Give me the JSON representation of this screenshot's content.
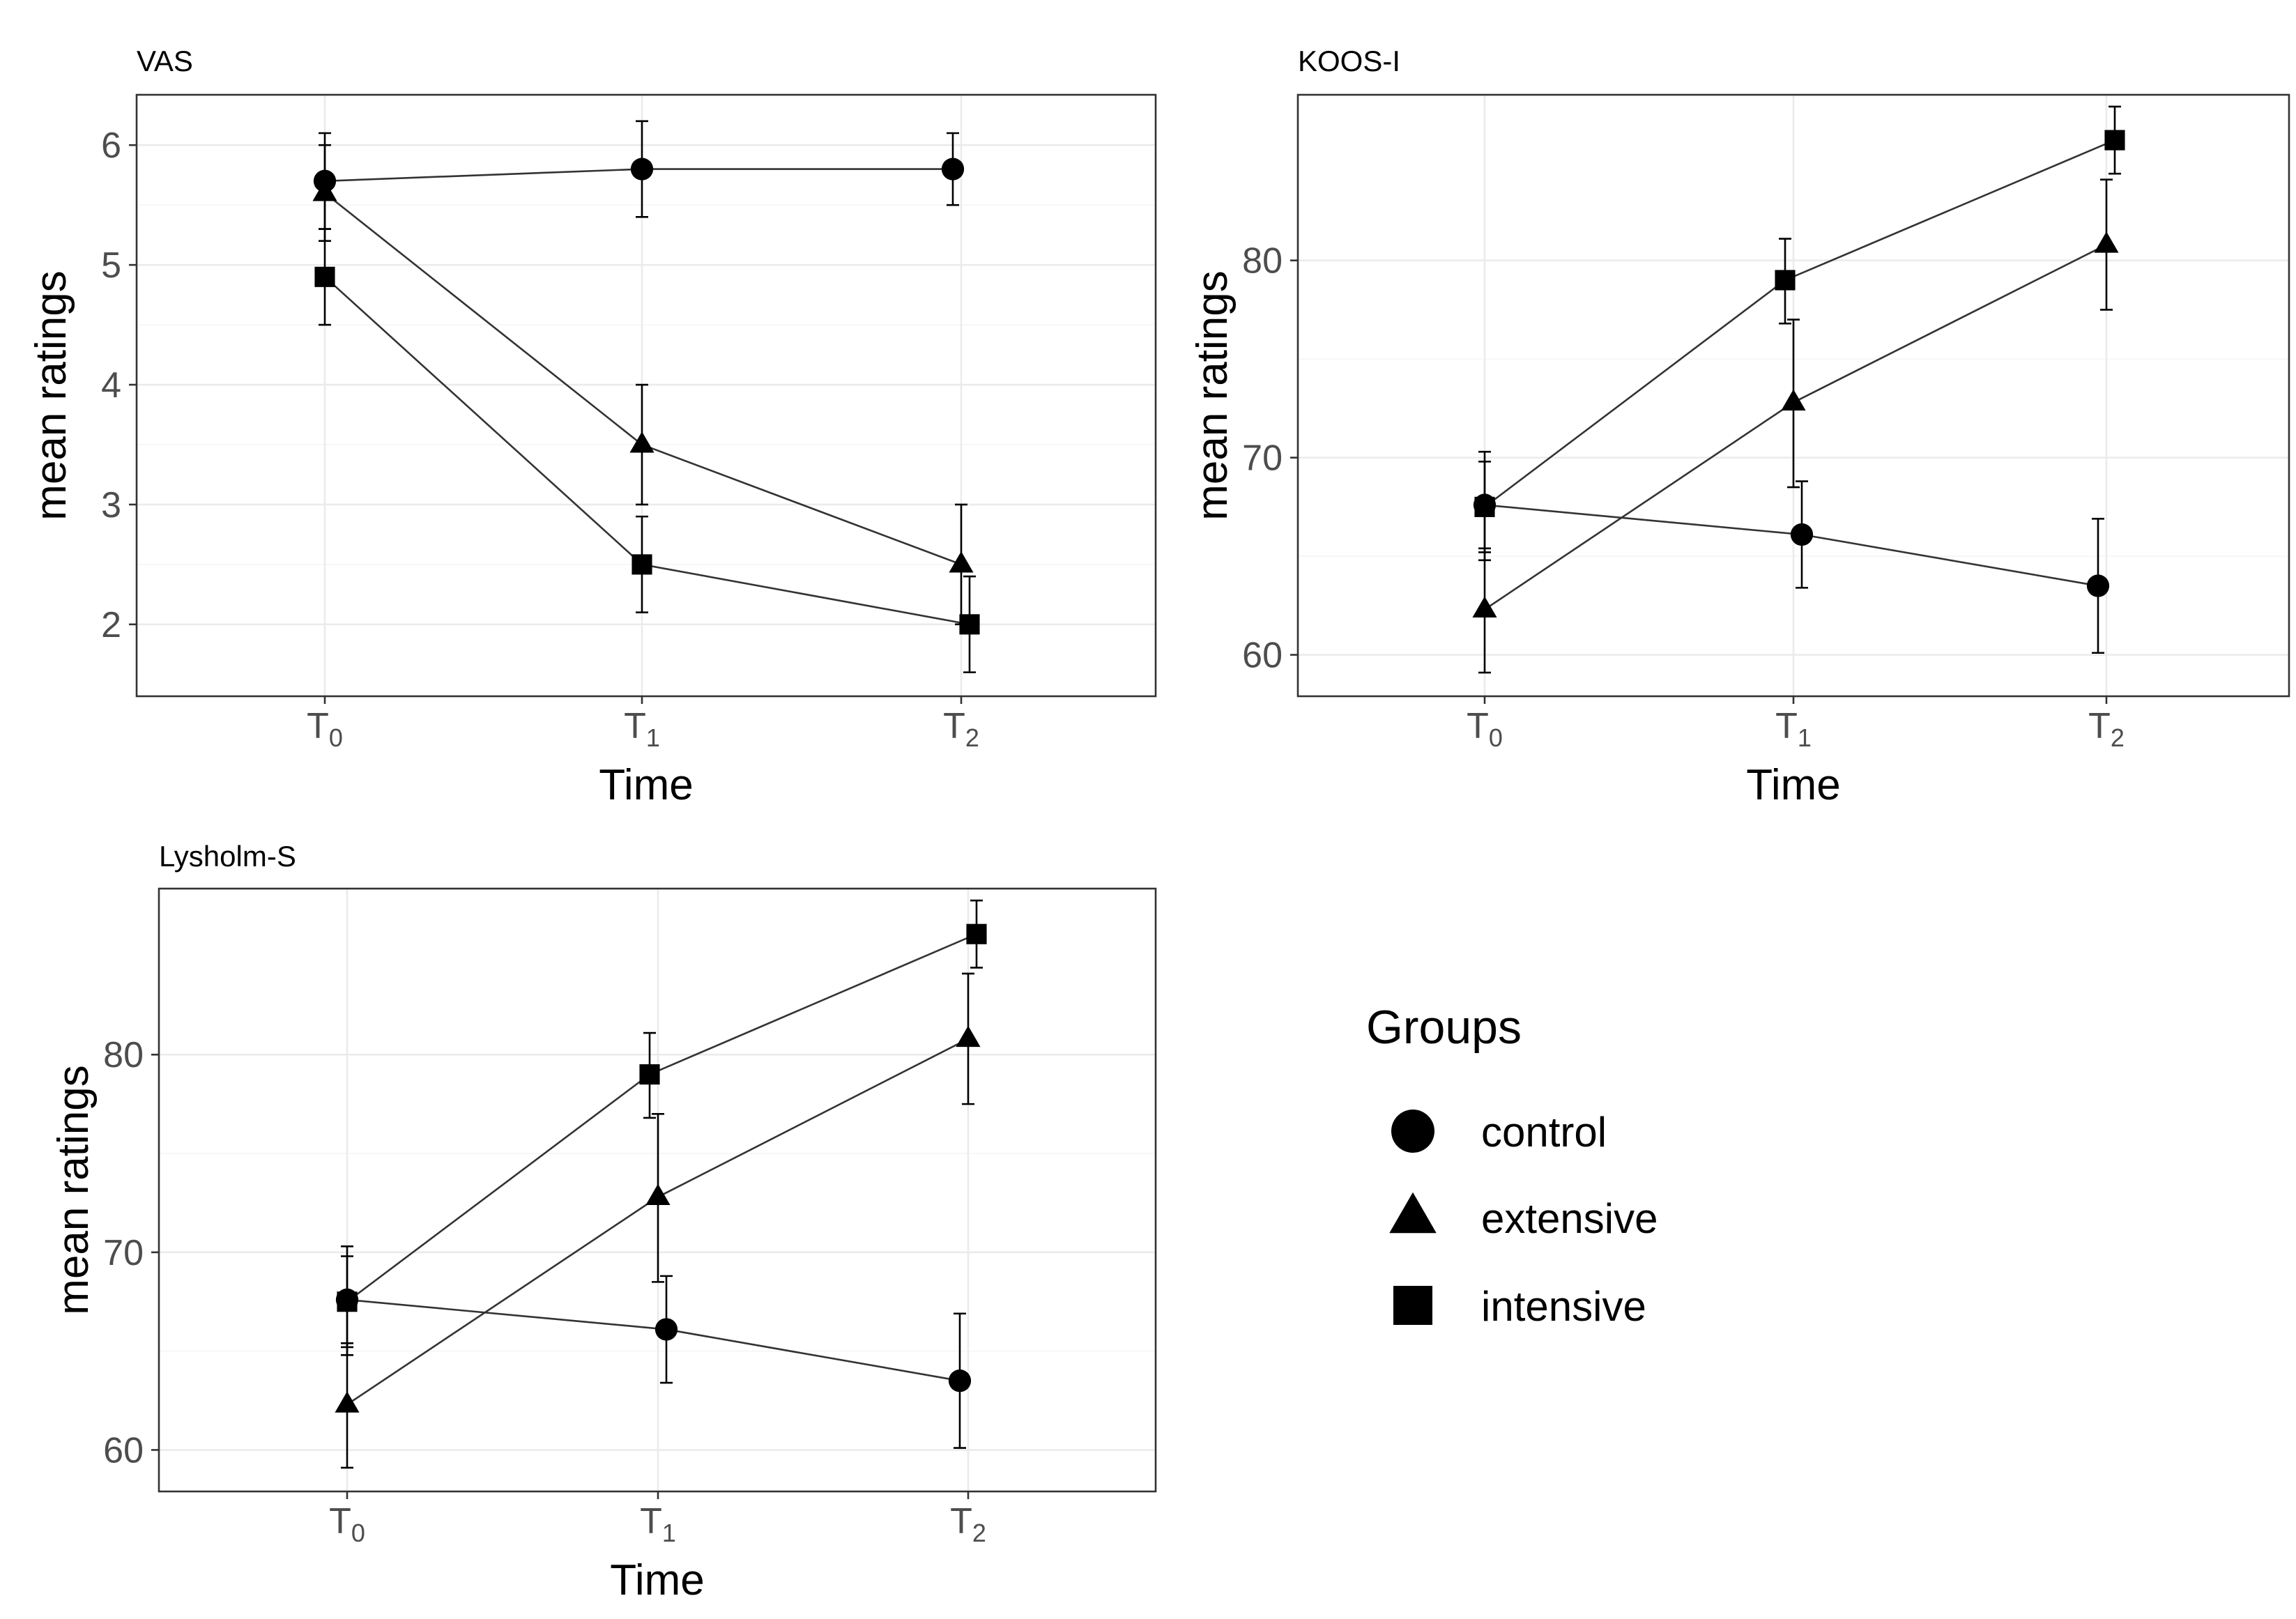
{
  "chart_data": [
    {
      "id": "vas",
      "type": "line",
      "title": "VAS",
      "xlabel": "Time",
      "ylabel": "mean ratings",
      "categories": [
        {
          "base": "T",
          "sub": "0"
        },
        {
          "base": "T",
          "sub": "1"
        },
        {
          "base": "T",
          "sub": "2"
        }
      ],
      "ylim": [
        1.4,
        6.42
      ],
      "yticks": [
        2,
        3,
        4,
        5,
        6
      ],
      "grid": true,
      "series": [
        {
          "name": "control",
          "shape": "circle",
          "values": [
            5.7,
            5.8,
            5.8
          ],
          "lower": [
            5.3,
            5.4,
            5.5
          ],
          "upper": [
            6.1,
            6.2,
            6.1
          ]
        },
        {
          "name": "extensive",
          "shape": "triangle",
          "values": [
            5.6,
            3.5,
            2.5
          ],
          "lower": [
            5.2,
            3.0,
            2.0
          ],
          "upper": [
            6.0,
            4.0,
            3.0
          ]
        },
        {
          "name": "intensive",
          "shape": "square",
          "values": [
            4.9,
            2.5,
            2.0
          ],
          "lower": [
            4.5,
            2.1,
            1.6
          ],
          "upper": [
            5.3,
            2.9,
            2.4
          ]
        }
      ]
    },
    {
      "id": "koos",
      "type": "line",
      "title": "KOOS-I",
      "xlabel": "Time",
      "ylabel": "mean ratings",
      "categories": [
        {
          "base": "T",
          "sub": "0"
        },
        {
          "base": "T",
          "sub": "1"
        },
        {
          "base": "T",
          "sub": "2"
        }
      ],
      "ylim": [
        57.9,
        88.4
      ],
      "yticks": [
        60,
        70,
        80
      ],
      "grid": true,
      "series": [
        {
          "name": "control",
          "shape": "circle",
          "values": [
            67.6,
            66.1,
            63.5
          ],
          "lower": [
            64.8,
            63.4,
            60.1
          ],
          "upper": [
            70.3,
            68.8,
            66.9
          ]
        },
        {
          "name": "extensive",
          "shape": "triangle",
          "values": [
            62.3,
            72.8,
            80.8
          ],
          "lower": [
            59.1,
            68.5,
            77.5
          ],
          "upper": [
            65.4,
            77.0,
            84.1
          ]
        },
        {
          "name": "intensive",
          "shape": "square",
          "values": [
            67.5,
            79.0,
            86.1
          ],
          "lower": [
            65.2,
            76.8,
            84.4
          ],
          "upper": [
            69.8,
            81.1,
            87.8
          ]
        }
      ]
    },
    {
      "id": "lysholm",
      "type": "line",
      "title": "Lysholm-S",
      "xlabel": "Time",
      "ylabel": "mean ratings",
      "categories": [
        {
          "base": "T",
          "sub": "0"
        },
        {
          "base": "T",
          "sub": "1"
        },
        {
          "base": "T",
          "sub": "2"
        }
      ],
      "ylim": [
        57.9,
        88.4
      ],
      "yticks": [
        60,
        70,
        80
      ],
      "grid": true,
      "series": [
        {
          "name": "control",
          "shape": "circle",
          "values": [
            67.6,
            66.1,
            63.5
          ],
          "lower": [
            64.8,
            63.4,
            60.1
          ],
          "upper": [
            70.3,
            68.8,
            66.9
          ]
        },
        {
          "name": "extensive",
          "shape": "triangle",
          "values": [
            62.3,
            72.8,
            80.8
          ],
          "lower": [
            59.1,
            68.5,
            77.5
          ],
          "upper": [
            65.4,
            77.0,
            84.1
          ]
        },
        {
          "name": "intensive",
          "shape": "square",
          "values": [
            67.5,
            79.0,
            86.1
          ],
          "lower": [
            65.2,
            76.8,
            84.4
          ],
          "upper": [
            69.8,
            81.1,
            87.8
          ]
        }
      ]
    }
  ],
  "legend": {
    "title": "Groups",
    "position": "bottom-right",
    "items": [
      {
        "label": "control",
        "shape": "circle"
      },
      {
        "label": "extensive",
        "shape": "triangle"
      },
      {
        "label": "intensive",
        "shape": "square"
      }
    ]
  }
}
